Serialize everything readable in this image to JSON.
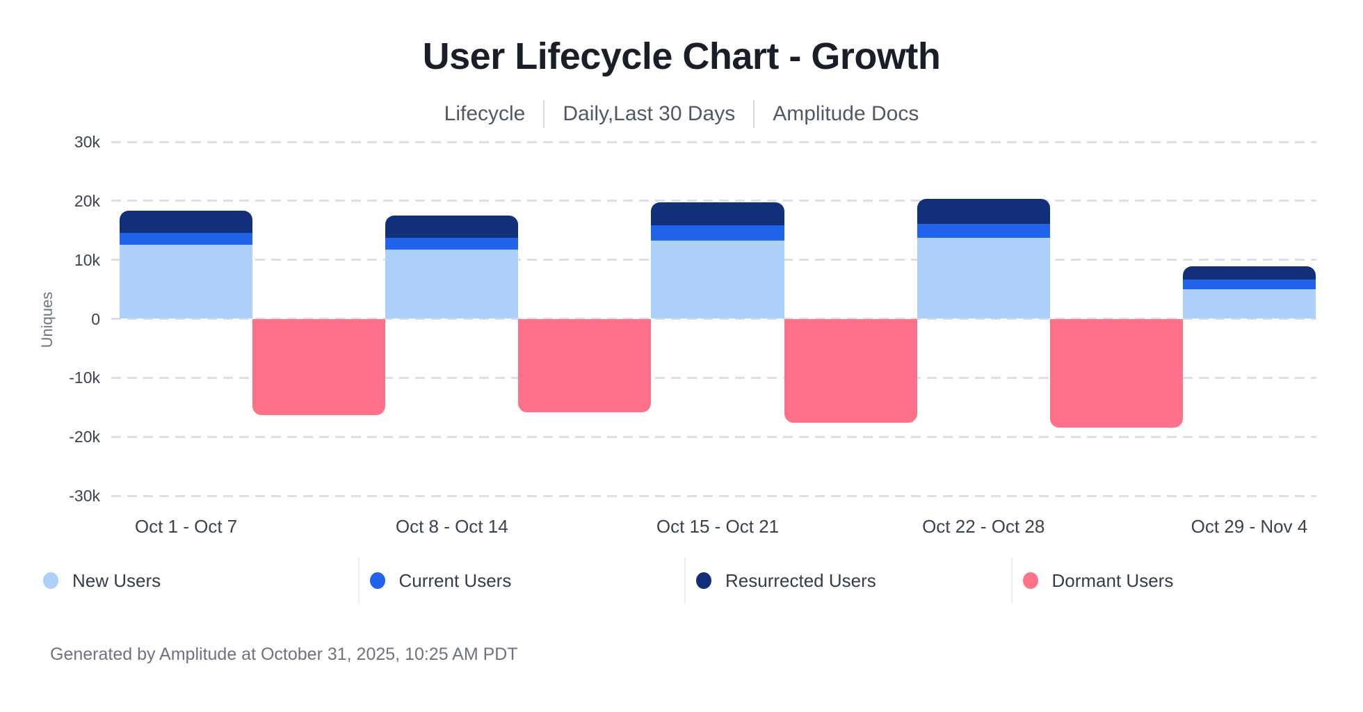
{
  "title": "User Lifecycle Chart - Growth",
  "subtitle": {
    "items": [
      "Lifecycle",
      "Daily,Last 30 Days",
      "Amplitude Docs"
    ]
  },
  "footer": "Generated by Amplitude at October 31, 2025, 10:25 AM PDT",
  "colors": {
    "new_users": "#AED1FB",
    "current_users": "#2263EB",
    "resurrected_users": "#123079",
    "dormant_users": "#FF7189",
    "gridline": "#DCDFEA",
    "title_text": "#1A1E28",
    "axis_text": "#3A4150",
    "muted_text": "#6E7380"
  },
  "chart_data": {
    "type": "bar",
    "stacked": true,
    "title": "User Lifecycle Chart - Growth",
    "xlabel": "",
    "ylabel": "Uniques",
    "ylim": [
      -30000,
      30000
    ],
    "ytick_step": 10000,
    "ytick_labels": [
      "30k",
      "20k",
      "10k",
      "0",
      "-10k",
      "-20k",
      "-30k"
    ],
    "grid": "horizontal-dashed",
    "legend_position": "bottom",
    "categories": [
      "Oct 1 - Oct 7",
      "Oct 8 - Oct 14",
      "Oct 15 - Oct 21",
      "Oct 22 - Oct 28",
      "Oct 29 - Nov 4"
    ],
    "series": [
      {
        "name": "New Users",
        "color": "#AED1FB",
        "values": [
          12500,
          11700,
          13300,
          13700,
          5000
        ]
      },
      {
        "name": "Current Users",
        "color": "#2263EB",
        "values": [
          2000,
          2000,
          2500,
          2400,
          1700
        ]
      },
      {
        "name": "Resurrected Users",
        "color": "#123079",
        "values": [
          3800,
          3800,
          4000,
          4200,
          2200
        ]
      },
      {
        "name": "Dormant Users",
        "color": "#FF7189",
        "values": [
          -16300,
          -15800,
          -17600,
          -18400,
          0
        ]
      }
    ]
  },
  "legend": {
    "items": [
      {
        "label": "New Users",
        "color": "#AED1FB"
      },
      {
        "label": "Current Users",
        "color": "#2263EB"
      },
      {
        "label": "Resurrected Users",
        "color": "#123079"
      },
      {
        "label": "Dormant Users",
        "color": "#FF7189"
      }
    ]
  }
}
